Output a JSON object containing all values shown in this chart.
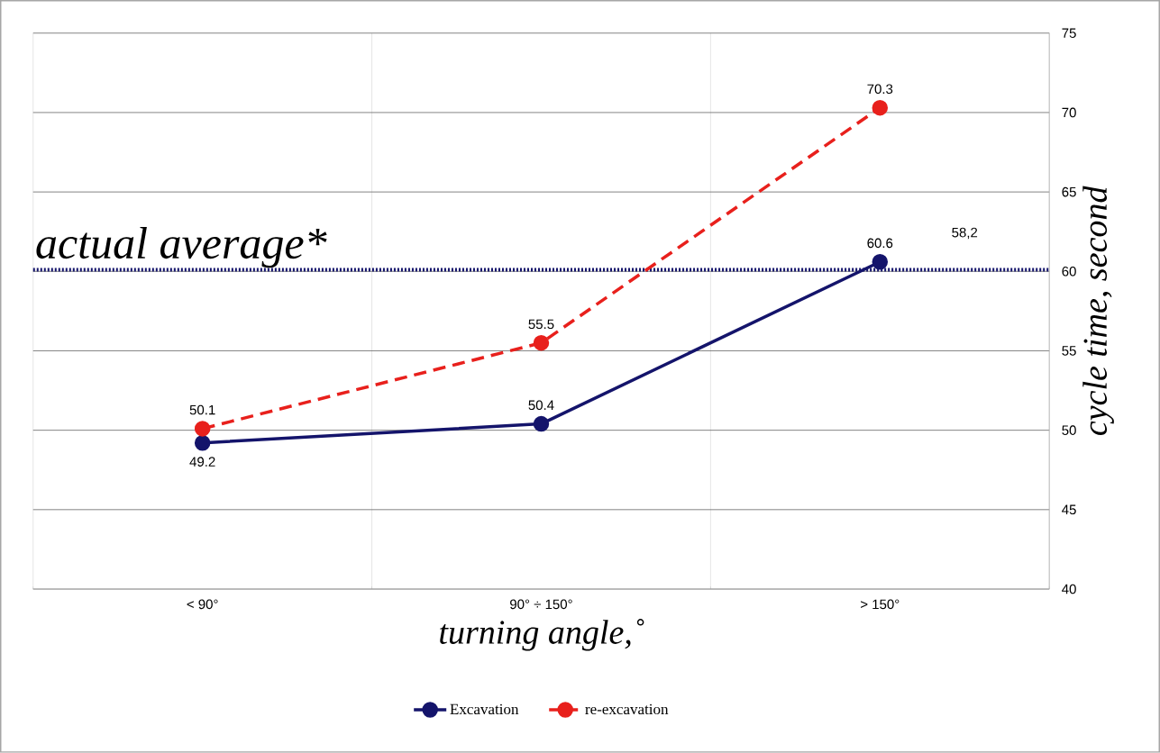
{
  "chart_data": {
    "type": "line",
    "xlabel": "turning angle,˚",
    "ylabel": "cycle time, second",
    "categories": [
      "< 90°",
      "90° ÷ 150°",
      "> 150°"
    ],
    "series": [
      {
        "name": "Excavation",
        "color": "#14146b",
        "values": [
          49.2,
          50.4,
          60.6
        ],
        "line_style": "solid"
      },
      {
        "name": "re-excavation",
        "color": "#e8201c",
        "values": [
          50.1,
          55.5,
          70.3
        ],
        "line_style": "dashed"
      }
    ],
    "ylim": [
      40,
      75
    ],
    "yticks": [
      40,
      45,
      50,
      55,
      60,
      65,
      70,
      75
    ],
    "ref_lines": [
      {
        "axis": "y",
        "value": 60.1,
        "label": "actual average*",
        "color": "#14146b",
        "line_style": "dotted"
      }
    ],
    "annotations": [
      "58,2"
    ],
    "data_labels": true,
    "grid": true,
    "legend": "bottom",
    "marker": "circle"
  }
}
